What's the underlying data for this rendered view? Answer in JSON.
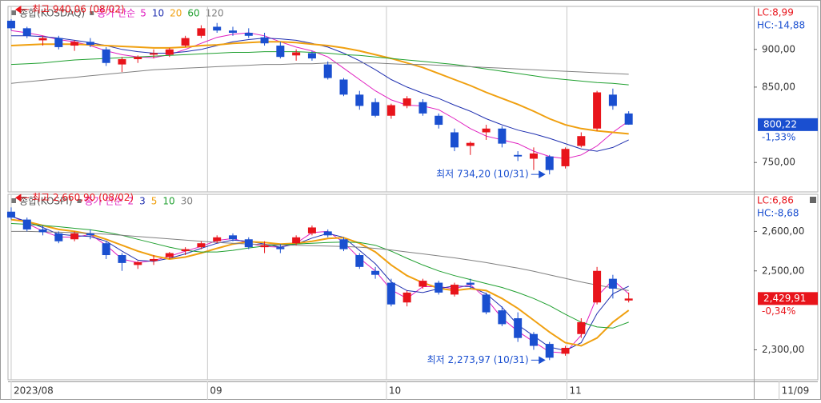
{
  "chart_data": [
    {
      "type": "candlestick",
      "title": "종합(KOSDAQ)",
      "ma_label": "종가 단순",
      "up_color": "#e8141b",
      "down_color": "#1a4fd0",
      "ylim": [
        711,
        957
      ],
      "xlim": [
        -0.2,
        46.9
      ],
      "yticks": [
        {
          "value": 750,
          "label": "750,00"
        },
        {
          "value": 850,
          "label": "850,00"
        },
        {
          "value": 900,
          "label": "900,00"
        }
      ],
      "lc": "LC:8,99",
      "hc": "HC:-14,88",
      "last_price": {
        "value": 800.22,
        "label": "800,22"
      },
      "change": "-1,33%",
      "high_label": "최고 940,06 (08/02)",
      "low_label": "최저 734,20 (10/31)",
      "ohlc": [
        [
          938,
          940.06,
          925,
          928
        ],
        [
          928,
          930,
          915,
          918
        ],
        [
          912,
          918,
          905,
          915
        ],
        [
          915,
          918,
          900,
          903
        ],
        [
          905,
          912,
          898,
          910
        ],
        [
          910,
          915,
          903,
          906
        ],
        [
          900,
          903,
          878,
          882
        ],
        [
          880,
          890,
          870,
          887
        ],
        [
          887,
          892,
          882,
          890
        ],
        [
          893,
          900,
          888,
          895
        ],
        [
          893,
          902,
          890,
          900
        ],
        [
          905,
          918,
          903,
          915
        ],
        [
          918,
          932,
          915,
          928
        ],
        [
          930,
          935,
          922,
          925
        ],
        [
          925,
          930,
          918,
          922
        ],
        [
          922,
          928,
          915,
          918
        ],
        [
          916,
          922,
          905,
          908
        ],
        [
          905,
          910,
          888,
          890
        ],
        [
          892,
          900,
          885,
          896
        ],
        [
          895,
          898,
          885,
          888
        ],
        [
          880,
          884,
          860,
          862
        ],
        [
          860,
          862,
          838,
          840
        ],
        [
          840,
          845,
          820,
          825
        ],
        [
          830,
          835,
          810,
          812
        ],
        [
          812,
          828,
          808,
          826
        ],
        [
          825,
          838,
          822,
          835
        ],
        [
          830,
          834,
          812,
          815
        ],
        [
          812,
          815,
          795,
          800
        ],
        [
          790,
          795,
          765,
          770
        ],
        [
          772,
          778,
          760,
          776
        ],
        [
          790,
          800,
          780,
          795
        ],
        [
          795,
          798,
          770,
          775
        ],
        [
          760,
          765,
          752,
          758
        ],
        [
          755,
          770,
          740,
          762
        ],
        [
          758,
          760,
          734.2,
          740
        ],
        [
          745,
          770,
          742,
          768
        ],
        [
          772,
          790,
          770,
          785
        ],
        [
          795,
          845,
          792,
          843
        ],
        [
          840,
          848,
          820,
          825
        ],
        [
          815,
          818,
          800,
          800.22
        ]
      ],
      "series": [
        {
          "name": "5",
          "color": "#e020c0",
          "values": [
            925,
            922,
            918,
            913,
            910,
            905,
            898,
            893,
            890,
            889,
            893,
            900,
            908,
            916,
            920,
            922,
            918,
            910,
            903,
            898,
            890,
            875,
            860,
            845,
            833,
            826,
            825,
            820,
            808,
            795,
            785,
            780,
            775,
            765,
            758,
            755,
            760,
            772,
            790,
            805
          ]
        },
        {
          "name": "10",
          "color": "#2030b0",
          "values": [
            918,
            918,
            917,
            915,
            912,
            909,
            905,
            900,
            897,
            895,
            895,
            897,
            900,
            905,
            910,
            913,
            915,
            914,
            912,
            908,
            903,
            895,
            885,
            873,
            860,
            850,
            842,
            835,
            826,
            818,
            808,
            800,
            793,
            788,
            782,
            775,
            768,
            765,
            770,
            780
          ]
        },
        {
          "name": "20",
          "color": "#f0a010",
          "values": [
            905,
            906,
            907,
            907,
            907,
            906,
            905,
            904,
            903,
            902,
            902,
            903,
            905,
            906,
            908,
            909,
            910,
            910,
            909,
            907,
            905,
            902,
            898,
            893,
            888,
            882,
            876,
            868,
            860,
            852,
            843,
            835,
            827,
            818,
            808,
            800,
            795,
            792,
            790,
            788
          ]
        },
        {
          "name": "60",
          "color": "#20a030",
          "values": [
            880,
            881,
            882,
            884,
            886,
            887,
            888,
            889,
            890,
            891,
            892,
            893,
            894,
            895,
            896,
            896,
            897,
            897,
            897,
            896,
            895,
            893,
            892,
            890,
            888,
            886,
            884,
            882,
            880,
            877,
            874,
            871,
            868,
            865,
            862,
            860,
            858,
            856,
            855,
            853
          ]
        },
        {
          "name": "120",
          "color": "#808080",
          "values": [
            855,
            857,
            859,
            861,
            863,
            865,
            867,
            869,
            871,
            873,
            874,
            875,
            876,
            877,
            878,
            879,
            880,
            880,
            881,
            881,
            882,
            882,
            882,
            882,
            881,
            880,
            880,
            879,
            878,
            877,
            876,
            875,
            874,
            873,
            872,
            871,
            870,
            869,
            868,
            867
          ]
        }
      ]
    },
    {
      "type": "candlestick",
      "title": "종합(KOSPI)",
      "ma_label": "종가 단순",
      "up_color": "#e8141b",
      "down_color": "#1a4fd0",
      "ylim": [
        2224,
        2694
      ],
      "xlim": [
        -0.2,
        46.9
      ],
      "yticks": [
        {
          "value": 2300,
          "label": "2,300,00"
        },
        {
          "value": 2500,
          "label": "2,500,00"
        },
        {
          "value": 2600,
          "label": "2,600,00"
        }
      ],
      "xticks": [
        {
          "value": 0,
          "label": "2023/08"
        },
        {
          "value": 12.4,
          "label": "09"
        },
        {
          "value": 23.7,
          "label": "10"
        },
        {
          "value": 35.1,
          "label": "11"
        },
        {
          "value": 48.5,
          "label": "11/09"
        }
      ],
      "lc": "LC:6,86",
      "hc": "HC:-8,68",
      "last_price": {
        "value": 2429.91,
        "label": "2,429,91"
      },
      "change": "-0,34%",
      "high_label": "최고 2,660,90 (08/02)",
      "low_label": "최저 2,273,97 (10/31)",
      "ohlc": [
        [
          2650,
          2660.9,
          2630,
          2635
        ],
        [
          2630,
          2635,
          2600,
          2605
        ],
        [
          2605,
          2615,
          2590,
          2598
        ],
        [
          2595,
          2600,
          2570,
          2575
        ],
        [
          2580,
          2600,
          2575,
          2595
        ],
        [
          2595,
          2605,
          2580,
          2590
        ],
        [
          2570,
          2575,
          2530,
          2540
        ],
        [
          2540,
          2545,
          2500,
          2520
        ],
        [
          2515,
          2525,
          2505,
          2522
        ],
        [
          2525,
          2540,
          2515,
          2530
        ],
        [
          2535,
          2548,
          2530,
          2545
        ],
        [
          2550,
          2560,
          2540,
          2555
        ],
        [
          2560,
          2575,
          2555,
          2570
        ],
        [
          2575,
          2590,
          2570,
          2585
        ],
        [
          2590,
          2595,
          2575,
          2580
        ],
        [
          2580,
          2585,
          2555,
          2560
        ],
        [
          2560,
          2575,
          2545,
          2565
        ],
        [
          2560,
          2568,
          2545,
          2555
        ],
        [
          2570,
          2590,
          2565,
          2585
        ],
        [
          2595,
          2615,
          2590,
          2610
        ],
        [
          2600,
          2605,
          2585,
          2590
        ],
        [
          2580,
          2585,
          2550,
          2555
        ],
        [
          2540,
          2545,
          2505,
          2510
        ],
        [
          2500,
          2510,
          2480,
          2490
        ],
        [
          2470,
          2480,
          2410,
          2415
        ],
        [
          2420,
          2450,
          2410,
          2445
        ],
        [
          2460,
          2480,
          2455,
          2475
        ],
        [
          2470,
          2475,
          2440,
          2445
        ],
        [
          2440,
          2470,
          2435,
          2465
        ],
        [
          2470,
          2480,
          2455,
          2465
        ],
        [
          2440,
          2445,
          2390,
          2395
        ],
        [
          2400,
          2410,
          2360,
          2365
        ],
        [
          2380,
          2395,
          2320,
          2330
        ],
        [
          2340,
          2345,
          2300,
          2310
        ],
        [
          2315,
          2320,
          2273.97,
          2280
        ],
        [
          2290,
          2310,
          2285,
          2305
        ],
        [
          2340,
          2380,
          2330,
          2370
        ],
        [
          2420,
          2510,
          2415,
          2500
        ],
        [
          2480,
          2490,
          2430,
          2455
        ],
        [
          2425,
          2445,
          2420,
          2429.91
        ]
      ],
      "series": [
        {
          "name": "2",
          "color": "#e020c0",
          "values": [
            2640,
            2620,
            2601,
            2586,
            2585,
            2592,
            2565,
            2530,
            2521,
            2526,
            2537,
            2550,
            2562,
            2577,
            2582,
            2570,
            2562,
            2560,
            2570,
            2597,
            2600,
            2572,
            2532,
            2500,
            2452,
            2430,
            2460,
            2460,
            2455,
            2465,
            2430,
            2380,
            2347,
            2320,
            2295,
            2292,
            2337,
            2435,
            2477,
            2442
          ]
        },
        {
          "name": "3",
          "color": "#2030b0",
          "values": [
            2638,
            2625,
            2610,
            2593,
            2589,
            2587,
            2575,
            2550,
            2527,
            2524,
            2532,
            2543,
            2557,
            2570,
            2578,
            2575,
            2568,
            2560,
            2568,
            2583,
            2595,
            2585,
            2552,
            2518,
            2472,
            2450,
            2445,
            2455,
            2462,
            2460,
            2442,
            2408,
            2363,
            2335,
            2307,
            2298,
            2318,
            2392,
            2442,
            2461
          ]
        },
        {
          "name": "5",
          "color": "#f0a010",
          "values": [
            2630,
            2625,
            2615,
            2605,
            2600,
            2593,
            2580,
            2565,
            2550,
            2538,
            2530,
            2535,
            2545,
            2557,
            2568,
            2574,
            2572,
            2568,
            2570,
            2575,
            2582,
            2584,
            2570,
            2548,
            2515,
            2488,
            2470,
            2456,
            2450,
            2455,
            2450,
            2430,
            2405,
            2375,
            2345,
            2318,
            2310,
            2330,
            2370,
            2400
          ]
        },
        {
          "name": "10",
          "color": "#20a030",
          "values": [
            2620,
            2618,
            2615,
            2612,
            2608,
            2604,
            2598,
            2590,
            2580,
            2570,
            2560,
            2552,
            2548,
            2548,
            2552,
            2558,
            2563,
            2566,
            2568,
            2570,
            2572,
            2573,
            2572,
            2565,
            2550,
            2532,
            2515,
            2500,
            2488,
            2478,
            2468,
            2458,
            2445,
            2430,
            2412,
            2390,
            2370,
            2358,
            2355,
            2370
          ]
        },
        {
          "name": "30",
          "color": "#808080",
          "values": [
            2600,
            2600,
            2599,
            2598,
            2597,
            2595,
            2593,
            2590,
            2587,
            2584,
            2581,
            2578,
            2575,
            2572,
            2570,
            2568,
            2567,
            2566,
            2565,
            2564,
            2563,
            2562,
            2560,
            2557,
            2553,
            2548,
            2543,
            2538,
            2533,
            2527,
            2521,
            2514,
            2507,
            2499,
            2490,
            2481,
            2472,
            2464,
            2457,
            2450
          ]
        }
      ]
    }
  ]
}
